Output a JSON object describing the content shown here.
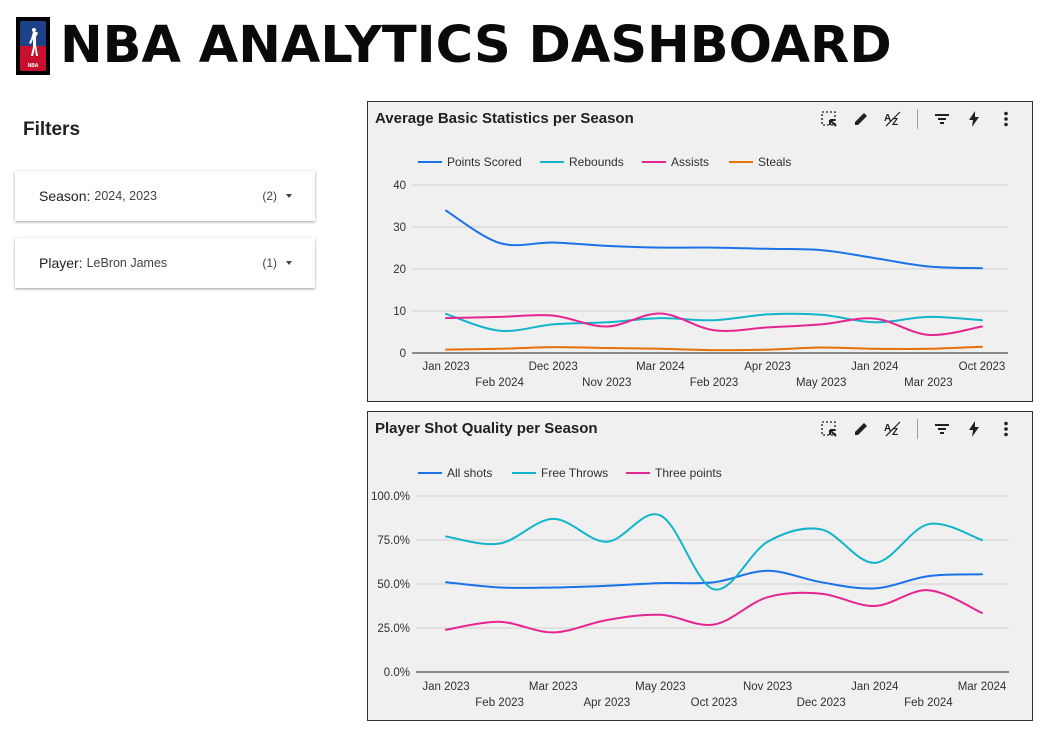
{
  "header": {
    "title": "NBA ANALYTICS DASHBOARD",
    "logo_text": "NBA"
  },
  "filters": {
    "heading": "Filters",
    "items": [
      {
        "label": "Season:",
        "value": "2024, 2023",
        "count": "(2)"
      },
      {
        "label": "Player:",
        "value": "LeBron James",
        "count": "(1)"
      }
    ]
  },
  "toolbar_icons": [
    "select-area-icon",
    "edit-icon",
    "sort-az-icon",
    "filter-icon",
    "bolt-icon",
    "more-vert-icon"
  ],
  "chart_data": [
    {
      "type": "line",
      "title": "Average Basic Statistics per Season",
      "x_labels_top": [
        "Jan 2023",
        "Dec 2023",
        "Mar 2024",
        "Apr 2023",
        "Jan 2024",
        "Oct 2023"
      ],
      "x_labels_bottom": [
        "Feb 2024",
        "Nov 2023",
        "Feb 2023",
        "May 2023",
        "Mar 2023"
      ],
      "x": [
        "Jan 2023",
        "Feb 2024",
        "Dec 2023",
        "Nov 2023",
        "Mar 2024",
        "Feb 2023",
        "Apr 2023",
        "May 2023",
        "Jan 2024",
        "Mar 2023",
        "Oct 2023"
      ],
      "ylim": [
        0,
        40
      ],
      "yticks": [
        0,
        10,
        20,
        30,
        40
      ],
      "ytick_labels": [
        "0",
        "10",
        "20",
        "30",
        "40"
      ],
      "grid": true,
      "legend_position": "top-left",
      "series": [
        {
          "name": "Points Scored",
          "color": "#1a73e8",
          "values": [
            33.9,
            26.2,
            26.3,
            25.5,
            25.1,
            25.1,
            24.8,
            24.5,
            22.6,
            20.6,
            20.2
          ]
        },
        {
          "name": "Rebounds",
          "color": "#12b5cb",
          "values": [
            9.3,
            5.3,
            6.8,
            7.3,
            8.3,
            7.8,
            9.2,
            9.1,
            7.3,
            8.6,
            7.8
          ]
        },
        {
          "name": "Assists",
          "color": "#e52592",
          "values": [
            8.3,
            8.6,
            8.9,
            6.3,
            9.4,
            5.4,
            6.1,
            6.8,
            8.2,
            4.3,
            6.3
          ]
        },
        {
          "name": "Steals",
          "color": "#e8710a",
          "values": [
            0.8,
            1.0,
            1.4,
            1.2,
            1.0,
            0.7,
            0.8,
            1.3,
            1.0,
            1.0,
            1.5
          ]
        }
      ]
    },
    {
      "type": "line",
      "title": "Player Shot Quality per Season",
      "x_labels_top": [
        "Jan 2023",
        "Mar 2023",
        "May 2023",
        "Nov 2023",
        "Jan 2024",
        "Mar 2024"
      ],
      "x_labels_bottom": [
        "Feb 2023",
        "Apr 2023",
        "Oct 2023",
        "Dec 2023",
        "Feb 2024"
      ],
      "x": [
        "Jan 2023",
        "Feb 2023",
        "Mar 2023",
        "Apr 2023",
        "May 2023",
        "Oct 2023",
        "Nov 2023",
        "Dec 2023",
        "Jan 2024",
        "Feb 2024",
        "Mar 2024"
      ],
      "ylim": [
        0,
        1
      ],
      "yticks": [
        0,
        0.25,
        0.5,
        0.75,
        1
      ],
      "ytick_labels": [
        "0.0%",
        "25.0%",
        "50.0%",
        "75.0%",
        "100.0%"
      ],
      "grid": true,
      "legend_position": "top-left",
      "series": [
        {
          "name": "All shots",
          "color": "#1a73e8",
          "values": [
            0.51,
            0.48,
            0.48,
            0.49,
            0.505,
            0.51,
            0.575,
            0.51,
            0.475,
            0.545,
            0.555
          ]
        },
        {
          "name": "Free Throws",
          "color": "#12b5cb",
          "values": [
            0.77,
            0.73,
            0.87,
            0.74,
            0.89,
            0.47,
            0.74,
            0.81,
            0.62,
            0.84,
            0.75
          ]
        },
        {
          "name": "Three points",
          "color": "#e52592",
          "values": [
            0.24,
            0.285,
            0.225,
            0.295,
            0.325,
            0.27,
            0.425,
            0.445,
            0.375,
            0.465,
            0.335
          ]
        }
      ]
    }
  ]
}
